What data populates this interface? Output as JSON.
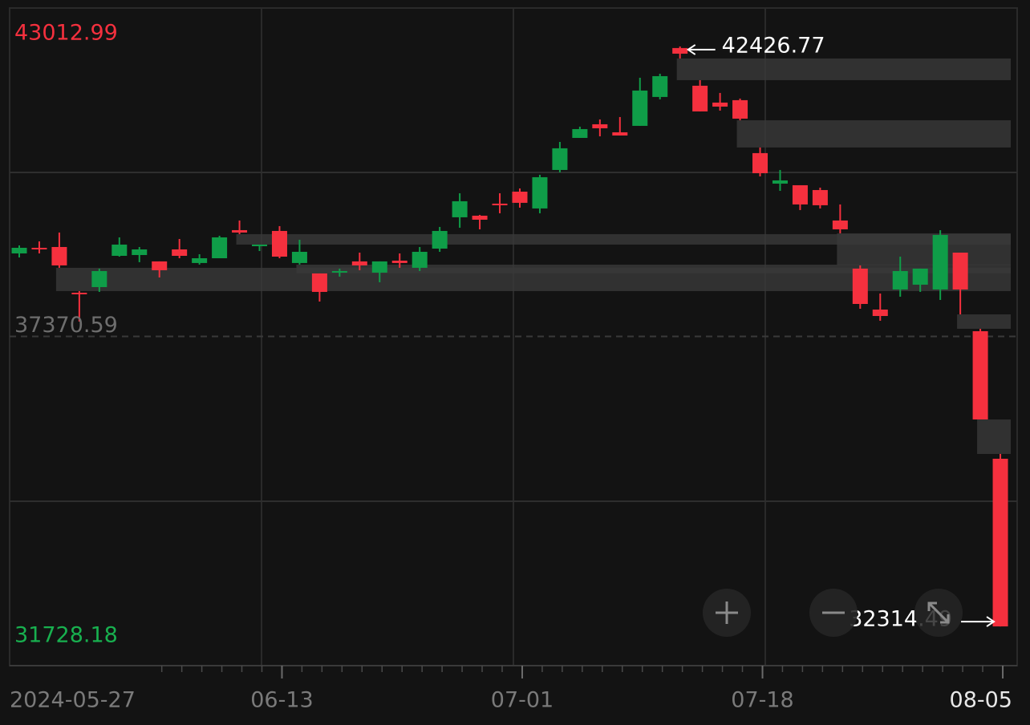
{
  "chart_data": {
    "type": "candlestick",
    "categories": [
      "2024-05-27",
      null,
      null,
      null,
      null,
      null,
      null,
      null,
      null,
      null,
      null,
      null,
      null,
      "06-13",
      null,
      null,
      null,
      null,
      null,
      null,
      null,
      null,
      null,
      null,
      null,
      "07-01",
      null,
      null,
      null,
      null,
      null,
      null,
      null,
      null,
      null,
      null,
      null,
      "07-18",
      null,
      null,
      null,
      null,
      null,
      null,
      null,
      null,
      null,
      null,
      null,
      "08-05"
    ],
    "open": [
      38818,
      38916,
      38930,
      38133,
      38231,
      38776,
      38790,
      38679,
      38888,
      38651,
      38734,
      39224,
      38944,
      39210,
      38651,
      38469,
      38483,
      38679,
      38483,
      38692,
      38567,
      38902,
      39448,
      39476,
      39686,
      39895,
      39602,
      40273,
      40832,
      41070,
      40930,
      41042,
      41546,
      42399,
      41742,
      41448,
      41490,
      40567,
      40035,
      40007,
      39923,
      39392,
      38553,
      37839,
      38189,
      38273,
      38189,
      38832,
      37462,
      35238
    ],
    "high": [
      38958,
      39028,
      39182,
      38161,
      38553,
      39098,
      38930,
      38679,
      39070,
      38804,
      39126,
      39392,
      38972,
      39294,
      39056,
      38469,
      38553,
      38832,
      38679,
      38818,
      38930,
      39280,
      39867,
      39490,
      39867,
      39951,
      40189,
      40762,
      41028,
      41154,
      41196,
      41881,
      41951,
      42426.77,
      41839,
      41616,
      41518,
      40665,
      40273,
      40007,
      39965,
      39672,
      38609,
      38119,
      38762,
      38553,
      39224,
      38832,
      37504,
      35322
    ],
    "low": [
      38748,
      38818,
      38567,
      37630,
      38147,
      38762,
      38665,
      38399,
      38734,
      38623,
      38734,
      39154,
      38860,
      38734,
      38623,
      37979,
      38413,
      38525,
      38315,
      38567,
      38511,
      38846,
      39266,
      39238,
      39518,
      39616,
      39518,
      40231,
      40832,
      40860,
      40874,
      41042,
      41504,
      42217,
      41294,
      41308,
      41140,
      40161,
      39909,
      39574,
      39602,
      39168,
      37853,
      37644,
      38063,
      38147,
      38007,
      37755,
      35923,
      32314.49
    ],
    "close": [
      38916,
      38888,
      38609,
      38105,
      38511,
      38972,
      38888,
      38525,
      38776,
      38734,
      39098,
      39182,
      38972,
      38762,
      38846,
      38147,
      38511,
      38609,
      38679,
      38651,
      38846,
      39210,
      39728,
      39406,
      39658,
      39700,
      40147,
      40651,
      40986,
      41000,
      40874,
      41658,
      41909,
      42301,
      41294,
      41378,
      41168,
      40217,
      40091,
      39672,
      39658,
      39238,
      37937,
      37727,
      38511,
      38553,
      39140,
      38189,
      35923,
      32314.49
    ],
    "up_color": "#0f9d48",
    "down_color": "#f5303e",
    "ylim": [
      31728.18,
      43012.99
    ],
    "yticks": [
      43012.99,
      37370.59,
      31728.18
    ],
    "grid": true
  }
}
